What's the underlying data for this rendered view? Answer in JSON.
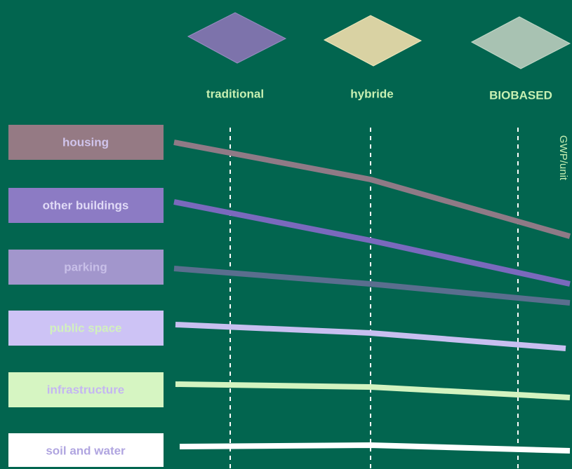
{
  "columns": [
    "traditional",
    "hybride",
    "BIOBASED"
  ],
  "axis_label": "GWP/unit",
  "rows": [
    "housing",
    "other buildings",
    "parking",
    "public space",
    "infrastructure",
    "soil and water"
  ]
}
